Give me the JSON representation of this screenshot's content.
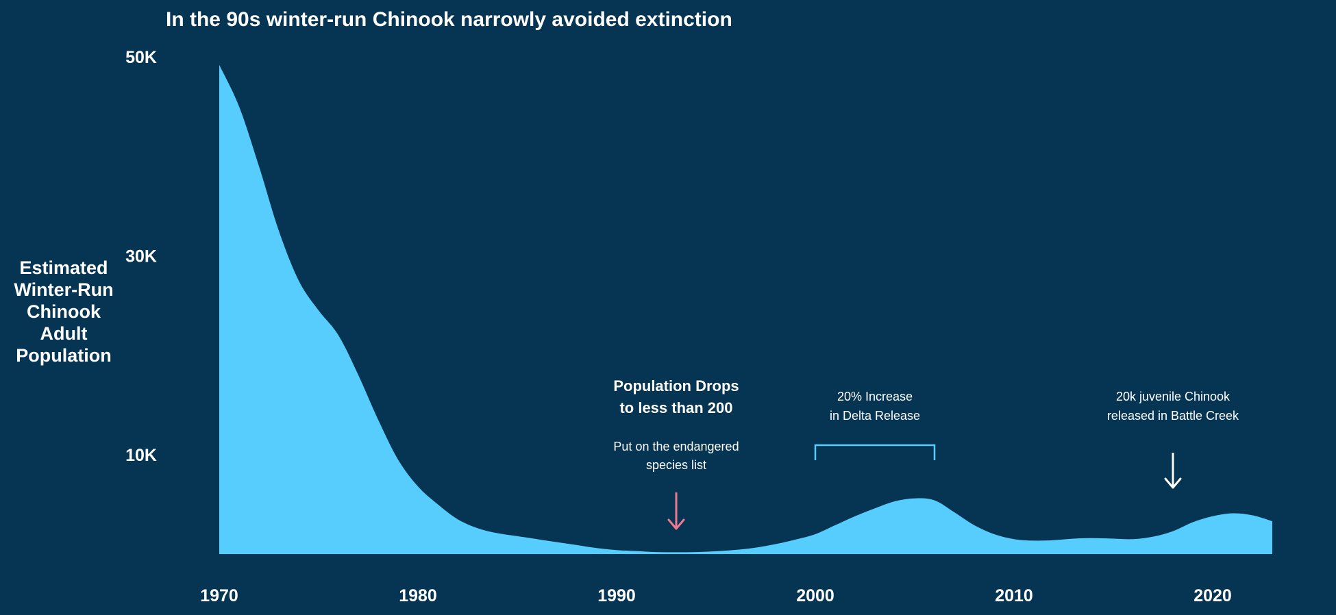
{
  "chart_data": {
    "type": "area",
    "title": "In the 90s winter-run Chinook narrowly avoided extinction",
    "xlabel": "",
    "ylabel_lines": [
      "Estimated",
      "Winter-Run",
      "Chinook",
      "Adult",
      "Population"
    ],
    "xlim": [
      1970,
      2023
    ],
    "ylim": [
      0,
      50000
    ],
    "x_ticks": [
      1970,
      1980,
      1990,
      2000,
      2010,
      2020
    ],
    "y_ticks": [
      {
        "value": 10000,
        "label": "10K"
      },
      {
        "value": 30000,
        "label": "30K"
      },
      {
        "value": 50000,
        "label": "50K"
      }
    ],
    "grid": false,
    "colors": {
      "background": "#063554",
      "area": "#56CDFC",
      "text": "#ffffff",
      "alert_arrow": "#F07891",
      "bracket": "#56CDFC",
      "arrow": "#ffffff"
    },
    "series": [
      {
        "x": [
          1970,
          1971,
          1972,
          1973,
          1974,
          1975,
          1976,
          1977,
          1978,
          1979,
          1980,
          1981,
          1982,
          1983,
          1984,
          1985,
          1986,
          1987,
          1988,
          1989,
          1990,
          1991,
          1992,
          1993,
          1994,
          1995,
          1996,
          1997,
          1998,
          1999,
          2000,
          2001,
          2002,
          2003,
          2004,
          2005,
          2006,
          2007,
          2008,
          2009,
          2010,
          2011,
          2012,
          2013,
          2014,
          2015,
          2016,
          2017,
          2018,
          2019,
          2020,
          2021,
          2022,
          2023
        ],
        "values": [
          49200,
          45000,
          39000,
          32500,
          27500,
          24500,
          22000,
          18000,
          13500,
          9500,
          6800,
          5000,
          3500,
          2600,
          2100,
          1800,
          1500,
          1200,
          900,
          600,
          400,
          300,
          200,
          180,
          200,
          280,
          420,
          650,
          1000,
          1450,
          2000,
          2900,
          3800,
          4600,
          5300,
          5600,
          5400,
          4200,
          2900,
          2000,
          1500,
          1350,
          1400,
          1550,
          1600,
          1550,
          1500,
          1750,
          2300,
          3200,
          3800,
          4100,
          3900,
          3300
        ]
      }
    ],
    "annotations": [
      {
        "id": "population-drop",
        "x": 1993,
        "bold_lines": [
          "Population Drops",
          "to less than 200"
        ],
        "lines": [
          "Put on the endangered",
          "species list"
        ],
        "arrow": "down"
      },
      {
        "id": "delta-release",
        "x_range": [
          2000,
          2006
        ],
        "lines": [
          "20% Increase",
          "in Delta Release"
        ],
        "bracket": true
      },
      {
        "id": "battle-creek",
        "x": 2018,
        "lines": [
          "20k juvenile Chinook",
          "released in Battle Creek"
        ],
        "arrow": "down"
      }
    ]
  }
}
